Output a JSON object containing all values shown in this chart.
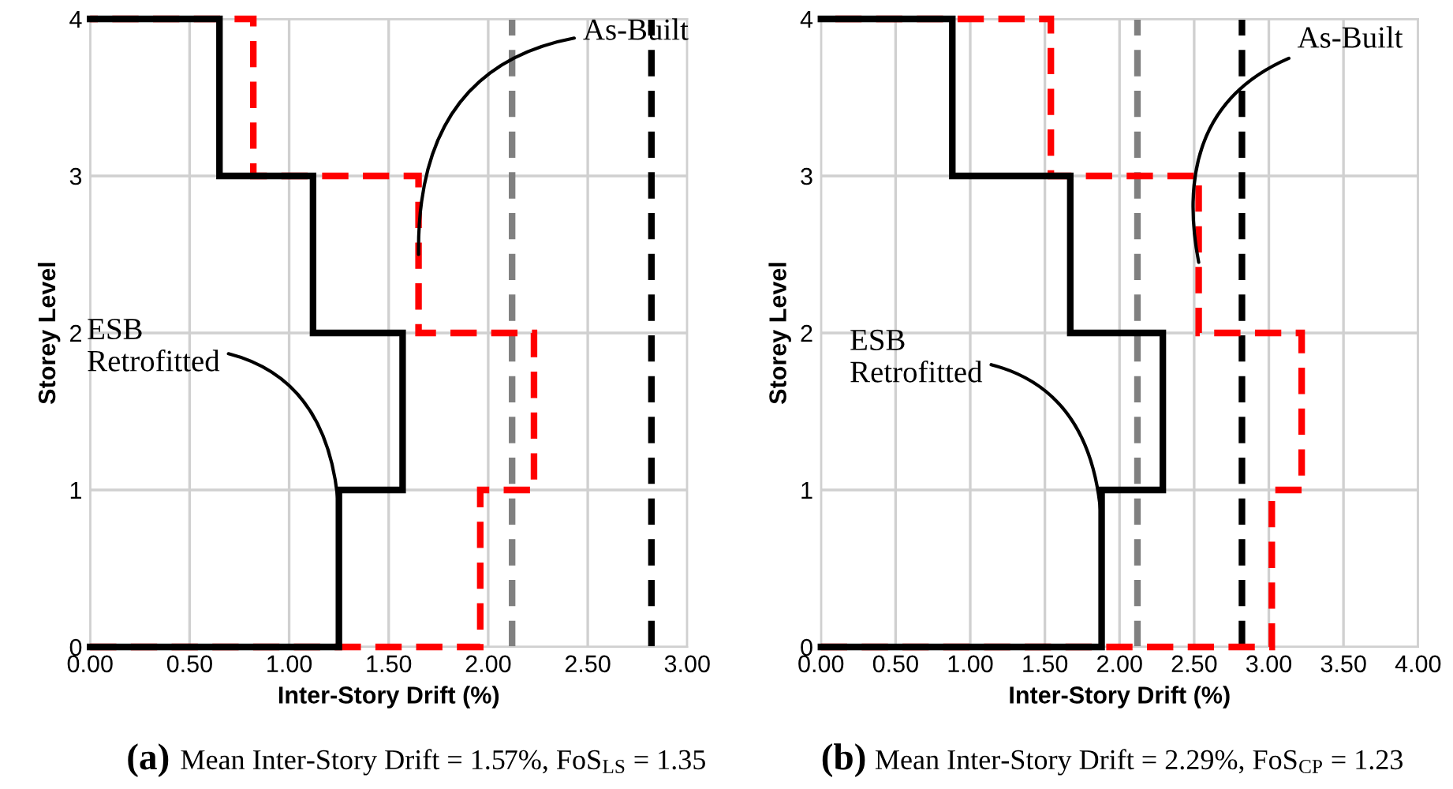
{
  "chart_data": [
    {
      "type": "line",
      "xlabel": "Inter-Story Drift (%)",
      "ylabel": "Storey Level",
      "xlim": [
        0,
        3
      ],
      "xticks": [
        {
          "value": 0,
          "label": "0.00"
        },
        {
          "value": 0.5,
          "label": "0.50"
        },
        {
          "value": 1,
          "label": "1.00"
        },
        {
          "value": 1.5,
          "label": "1.50"
        },
        {
          "value": 2,
          "label": "2.00"
        },
        {
          "value": 2.5,
          "label": "2.50"
        },
        {
          "value": 3,
          "label": "3.00"
        }
      ],
      "ylim": [
        0,
        4
      ],
      "yticks": [
        0,
        1,
        2,
        3,
        4
      ],
      "grid": true,
      "legend": false,
      "marker": "none",
      "series": [
        {
          "color": "#ff0000",
          "line_style": "dashed",
          "x": [
            0,
            1.96,
            1.96,
            2.23,
            2.23,
            1.65,
            1.65,
            0.82,
            0.82,
            0
          ],
          "values": [
            0,
            0,
            1,
            1,
            2,
            2,
            3,
            3,
            4,
            4
          ]
        },
        {
          "color": "#000000",
          "line_style": "solid",
          "x": [
            0,
            1.25,
            1.25,
            1.57,
            1.57,
            1.12,
            1.12,
            0.65,
            0.65,
            0
          ],
          "values": [
            0,
            0,
            1,
            1,
            2,
            2,
            3,
            3,
            4,
            4
          ]
        }
      ],
      "ref_lines": [
        {
          "axis": "x",
          "value": 2.12,
          "color": "#808080",
          "line_style": "dashed"
        },
        {
          "axis": "x",
          "value": 2.82,
          "color": "#000000",
          "line_style": "dashed"
        }
      ],
      "annotations": [
        {
          "text": "As-Built",
          "x": 1.65,
          "y": 2.5
        },
        {
          "text": "ESB\nRetrofitted",
          "x": 1.25,
          "y": 0.85
        },
        "(a)",
        "Mean Inter-Story Drift = 1.57%, FoS$_{LS}$ = 1.35"
      ]
    },
    {
      "type": "line",
      "xlabel": "Inter-Story Drift (%)",
      "ylabel": "Storey Level",
      "xlim": [
        0,
        4
      ],
      "xticks": [
        {
          "value": 0,
          "label": "0.00"
        },
        {
          "value": 0.5,
          "label": "0.50"
        },
        {
          "value": 1,
          "label": "1.00"
        },
        {
          "value": 1.5,
          "label": "1.50"
        },
        {
          "value": 2,
          "label": "2.00"
        },
        {
          "value": 2.5,
          "label": "2.50"
        },
        {
          "value": 3,
          "label": "3.00"
        },
        {
          "value": 3.5,
          "label": "3.50"
        },
        {
          "value": 4,
          "label": "4.00"
        }
      ],
      "ylim": [
        0,
        4
      ],
      "yticks": [
        0,
        1,
        2,
        3,
        4
      ],
      "grid": true,
      "legend": false,
      "marker": "none",
      "series": [
        {
          "color": "#ff0000",
          "line_style": "dashed",
          "x": [
            0,
            3.02,
            3.02,
            3.22,
            3.22,
            2.53,
            2.53,
            1.54,
            1.54,
            0
          ],
          "values": [
            0,
            0,
            1,
            1,
            2,
            2,
            3,
            3,
            4,
            4
          ]
        },
        {
          "color": "#000000",
          "line_style": "solid",
          "x": [
            0,
            1.88,
            1.88,
            2.29,
            2.29,
            1.67,
            1.67,
            0.88,
            0.88,
            0
          ],
          "values": [
            0,
            0,
            1,
            1,
            2,
            2,
            3,
            3,
            4,
            4
          ]
        }
      ],
      "ref_lines": [
        {
          "axis": "x",
          "value": 2.12,
          "color": "#808080",
          "line_style": "dashed"
        },
        {
          "axis": "x",
          "value": 2.82,
          "color": "#000000",
          "line_style": "dashed"
        }
      ],
      "annotations": [
        {
          "text": "As-Built",
          "x": 2.53,
          "y": 2.45
        },
        {
          "text": "ESB\nRetrofitted",
          "x": 1.88,
          "y": 0.78
        },
        "(b)",
        "Mean Inter-Story Drift = 2.29%, FoS$_{CP}$ = 1.23"
      ]
    }
  ]
}
